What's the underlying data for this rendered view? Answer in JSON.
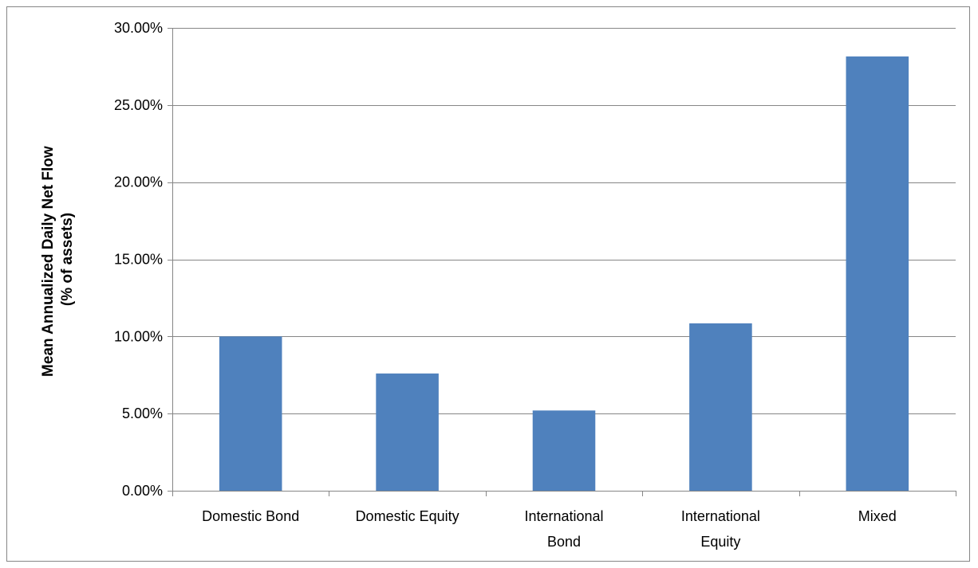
{
  "chart_data": {
    "type": "bar",
    "title": "",
    "xlabel": "",
    "ylabel_lines": [
      "Mean Annualized Daily Net Flow",
      "(% of assets)"
    ],
    "categories": [
      [
        "Domestic Bond"
      ],
      [
        "Domestic Equity"
      ],
      [
        "International",
        "Bond"
      ],
      [
        "International",
        "Equity"
      ],
      [
        "Mixed"
      ]
    ],
    "values": [
      10.0,
      7.6,
      5.2,
      10.85,
      28.15
    ],
    "ylim": [
      0,
      30
    ],
    "ytick_values": [
      0,
      5,
      10,
      15,
      20,
      25,
      30
    ],
    "ytick_labels": [
      "0.00%",
      "5.00%",
      "10.00%",
      "15.00%",
      "20.00%",
      "25.00%",
      "30.00%"
    ],
    "grid": true,
    "legend": "none",
    "colors": {
      "bar": "#4F81BD",
      "grid": "#868686",
      "axis": "#868686"
    }
  }
}
